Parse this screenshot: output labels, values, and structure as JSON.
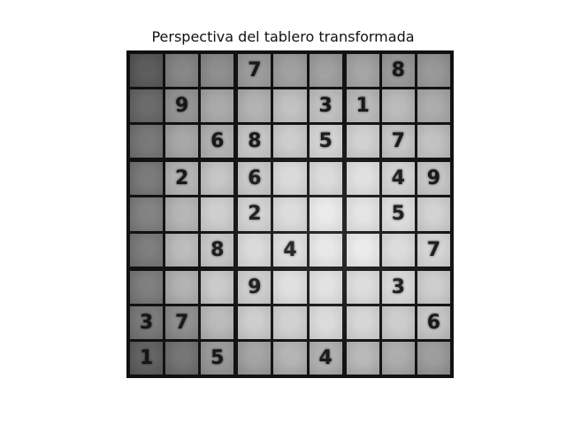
{
  "title": "Perspectiva del tablero transformada",
  "board": {
    "rows": [
      [
        "",
        "",
        "",
        "7",
        "",
        "",
        "",
        "8",
        ""
      ],
      [
        "",
        "9",
        "",
        "",
        "",
        "3",
        "1",
        "",
        ""
      ],
      [
        "",
        "",
        "6",
        "8",
        "",
        "5",
        "",
        "7",
        ""
      ],
      [
        "",
        "2",
        "",
        "6",
        "",
        "",
        "",
        "4",
        "9"
      ],
      [
        "",
        "",
        "",
        "2",
        "",
        "",
        "",
        "5",
        ""
      ],
      [
        "",
        "",
        "8",
        "",
        "4",
        "",
        "",
        "",
        "7"
      ],
      [
        "",
        "",
        "",
        "9",
        "",
        "",
        "",
        "3",
        ""
      ],
      [
        "3",
        "7",
        "",
        "",
        "",
        "",
        "",
        "",
        "6"
      ],
      [
        "1",
        "",
        "5",
        "",
        "",
        "4",
        "",
        "",
        ""
      ]
    ]
  }
}
